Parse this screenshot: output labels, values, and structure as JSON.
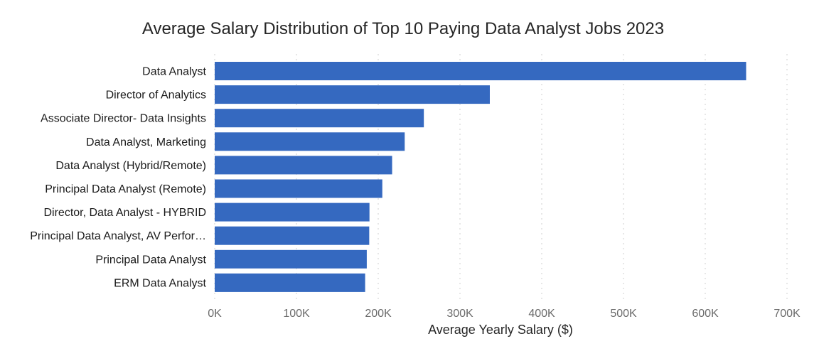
{
  "chart_data": {
    "type": "bar",
    "orientation": "horizontal",
    "title": "Average Salary Distribution of Top 10 Paying Data Analyst Jobs 2023",
    "xlabel": "Average Yearly Salary ($)",
    "ylabel": "",
    "categories": [
      "Data Analyst",
      "Director of Analytics",
      "Associate Director- Data Insights",
      "Data Analyst, Marketing",
      "Data Analyst (Hybrid/Remote)",
      "Principal Data Analyst (Remote)",
      "Director, Data Analyst - HYBRID",
      "Principal Data Analyst, AV Perfor…",
      "Principal Data Analyst",
      "ERM Data Analyst"
    ],
    "values": [
      650000,
      336500,
      255800,
      232400,
      217000,
      205000,
      189300,
      189000,
      186000,
      184000
    ],
    "xlim": [
      0,
      700000
    ],
    "x_ticks": [
      0,
      100000,
      200000,
      300000,
      400000,
      500000,
      600000,
      700000
    ],
    "x_tick_labels": [
      "0K",
      "100K",
      "200K",
      "300K",
      "400K",
      "500K",
      "600K",
      "700K"
    ],
    "grid": "vertical dotted",
    "bar_color": "#3569c0"
  }
}
